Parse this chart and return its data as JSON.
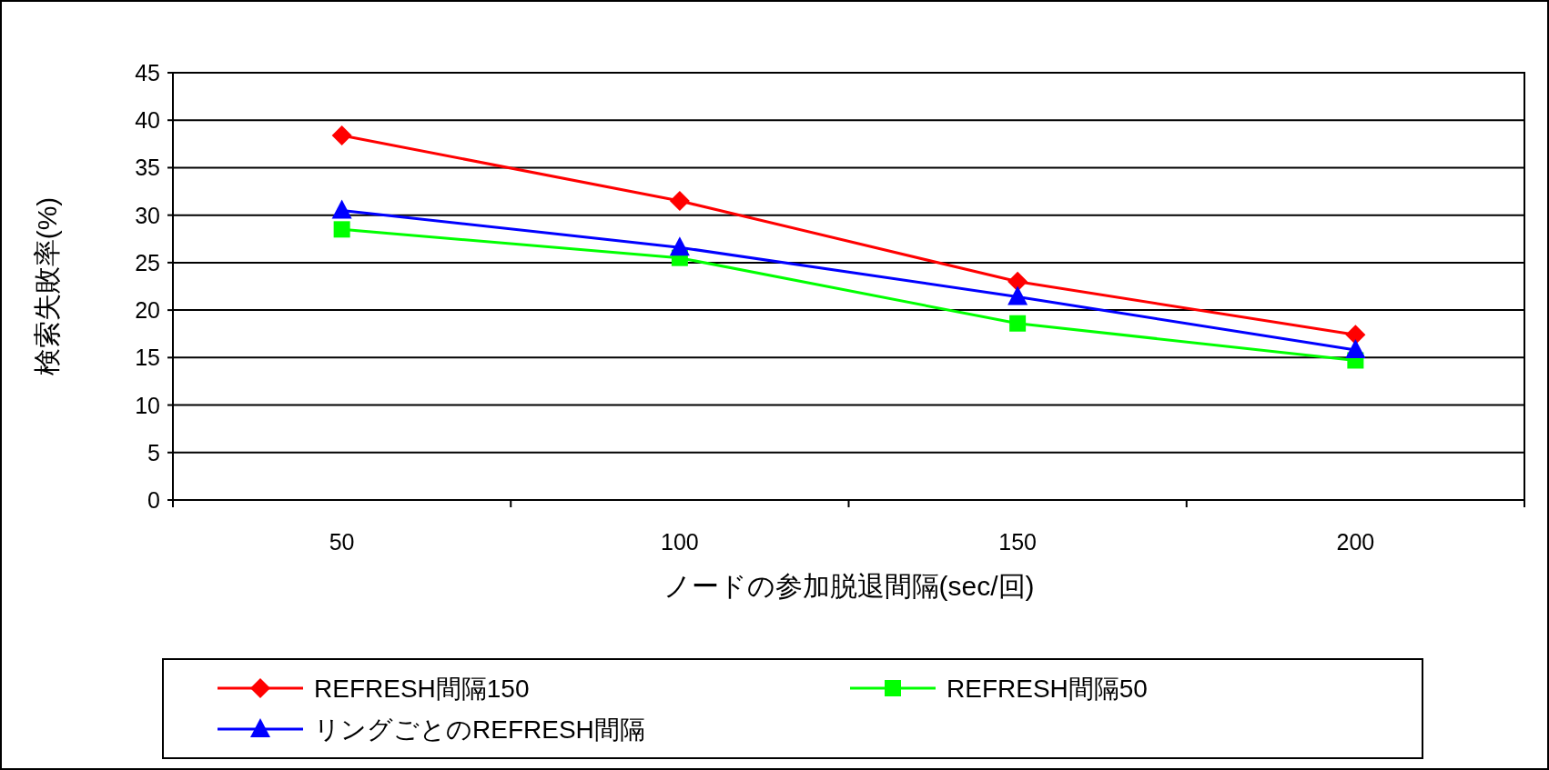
{
  "chart_data": {
    "type": "line",
    "xlabel": "ノードの参加脱退間隔(sec/回)",
    "ylabel": "検索失敗率(%)",
    "categories": [
      "50",
      "100",
      "150",
      "200"
    ],
    "series": [
      {
        "name": "REFRESH間隔150",
        "color": "#ff0000",
        "marker": "diamond",
        "values": [
          38.4,
          31.5,
          23.0,
          17.4
        ]
      },
      {
        "name": "REFRESH間隔50",
        "color": "#00ff00",
        "marker": "square",
        "values": [
          28.5,
          25.5,
          18.6,
          14.7
        ]
      },
      {
        "name": "リングごとのREFRESH間隔",
        "color": "#0000ff",
        "marker": "triangle",
        "values": [
          30.5,
          26.6,
          21.4,
          15.8
        ]
      }
    ],
    "ylim": [
      0,
      45
    ],
    "yticks": [
      0,
      5,
      10,
      15,
      20,
      25,
      30,
      35,
      40,
      45
    ],
    "grid": "y",
    "legend": "bottom"
  }
}
